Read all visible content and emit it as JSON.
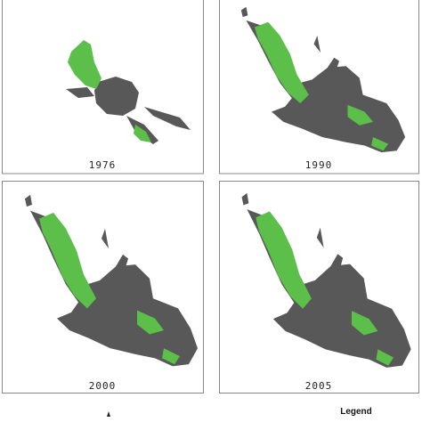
{
  "panels": [
    {
      "label": "1976"
    },
    {
      "label": "1990"
    },
    {
      "label": "2000"
    },
    {
      "label": "2005"
    }
  ],
  "legend": {
    "title": "Legend"
  }
}
